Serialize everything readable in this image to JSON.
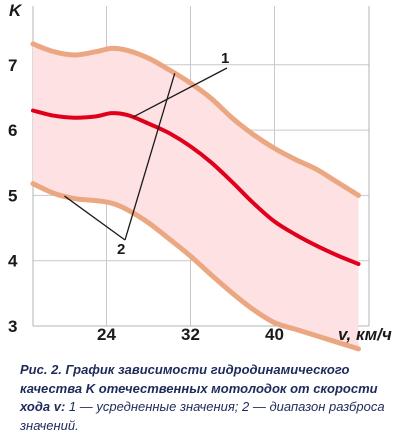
{
  "chart_data": {
    "type": "area",
    "ylabel": "K",
    "xlabel": "v, км/ч",
    "xlim": [
      17,
      49
    ],
    "ylim": [
      3,
      7.9
    ],
    "x_ticks": [
      "24",
      "32",
      "40"
    ],
    "y_ticks": [
      "3",
      "4",
      "5",
      "6",
      "7"
    ],
    "grid": true,
    "series": [
      {
        "name": "1",
        "color": "#e0001b",
        "x": [
          17,
          19,
          21,
          23,
          24.5,
          26,
          28,
          30,
          32,
          34,
          36,
          38,
          40,
          42,
          44,
          46,
          48
        ],
        "y": [
          6.3,
          6.22,
          6.19,
          6.21,
          6.26,
          6.23,
          6.1,
          5.95,
          5.75,
          5.5,
          5.2,
          4.88,
          4.6,
          4.4,
          4.23,
          4.08,
          3.95
        ]
      },
      {
        "name": "2",
        "role": "band-upper",
        "color": "#eba781",
        "x": [
          17,
          19,
          21,
          23,
          24.5,
          26,
          28,
          30,
          32,
          34,
          36,
          38,
          40,
          42,
          44,
          46,
          48
        ],
        "y": [
          7.32,
          7.2,
          7.15,
          7.2,
          7.25,
          7.22,
          7.1,
          6.92,
          6.72,
          6.48,
          6.18,
          5.93,
          5.72,
          5.55,
          5.4,
          5.2,
          5.0
        ]
      },
      {
        "name": "2",
        "role": "band-lower",
        "color": "#eba781",
        "x": [
          17,
          19,
          21,
          23,
          24.5,
          26,
          28,
          30,
          32,
          34,
          36,
          38,
          40,
          42,
          44,
          46,
          48
        ],
        "y": [
          5.18,
          5.03,
          4.95,
          4.92,
          4.88,
          4.78,
          4.58,
          4.33,
          4.07,
          3.78,
          3.5,
          3.25,
          3.05,
          2.95,
          2.85,
          2.75,
          2.65
        ]
      }
    ],
    "band_fill": "#fde1e3",
    "annotations": [
      "1",
      "2"
    ]
  },
  "caption": {
    "fig_label": "Рис. 2. График зависимости гидродинами­ческого качества K отечественных мотоло­док от скорости хода v:",
    "rest": " 1 — усредненные зна­чения; 2 — диапазон разброса значений."
  }
}
